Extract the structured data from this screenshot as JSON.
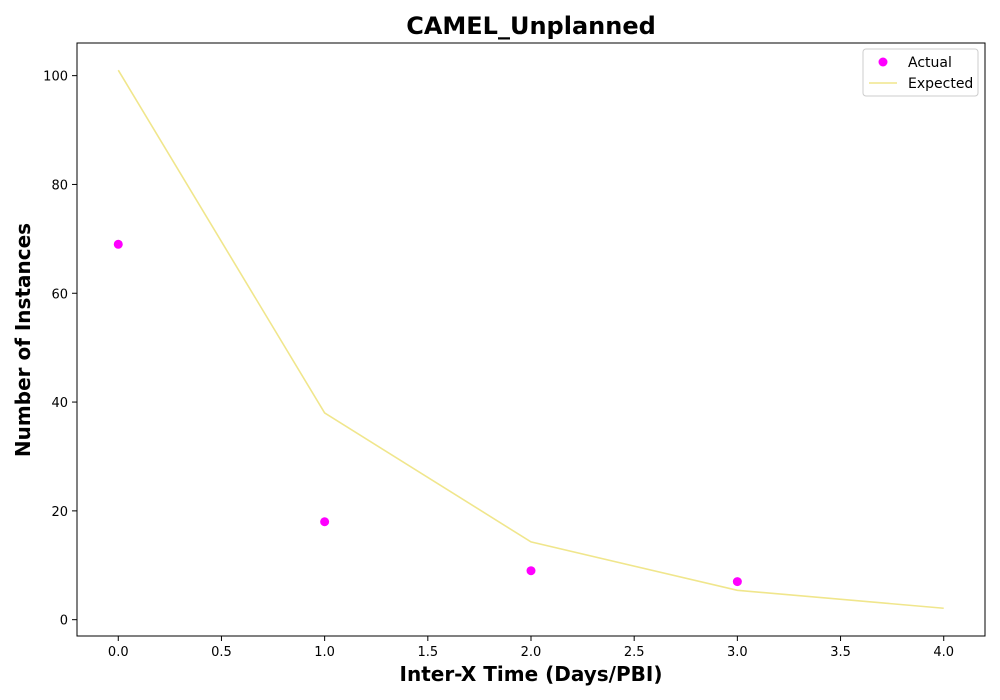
{
  "chart_data": {
    "type": "scatter",
    "title": "CAMEL_Unplanned",
    "xlabel": "Inter-X Time (Days/PBI)",
    "ylabel": "Number of Instances",
    "xlim": [
      -0.2,
      4.2
    ],
    "ylim": [
      -3,
      106
    ],
    "xticks": [
      0.0,
      0.5,
      1.0,
      1.5,
      2.0,
      2.5,
      3.0,
      3.5,
      4.0
    ],
    "xtick_labels": [
      "0.0",
      "0.5",
      "1.0",
      "1.5",
      "2.0",
      "2.5",
      "3.0",
      "3.5",
      "4.0"
    ],
    "yticks": [
      0,
      20,
      40,
      60,
      80,
      100
    ],
    "ytick_labels": [
      "0",
      "20",
      "40",
      "60",
      "80",
      "100"
    ],
    "grid": false,
    "legend_position": "top-right",
    "series": [
      {
        "name": "Actual",
        "kind": "scatter",
        "color": "#ff00ff",
        "x": [
          0,
          1,
          2,
          3
        ],
        "y": [
          69,
          18,
          9,
          7
        ]
      },
      {
        "name": "Expected",
        "kind": "line",
        "color": "#f0e68c",
        "x": [
          0,
          1,
          2,
          3,
          4
        ],
        "y": [
          101,
          38,
          14.3,
          5.4,
          2.1
        ]
      }
    ]
  }
}
